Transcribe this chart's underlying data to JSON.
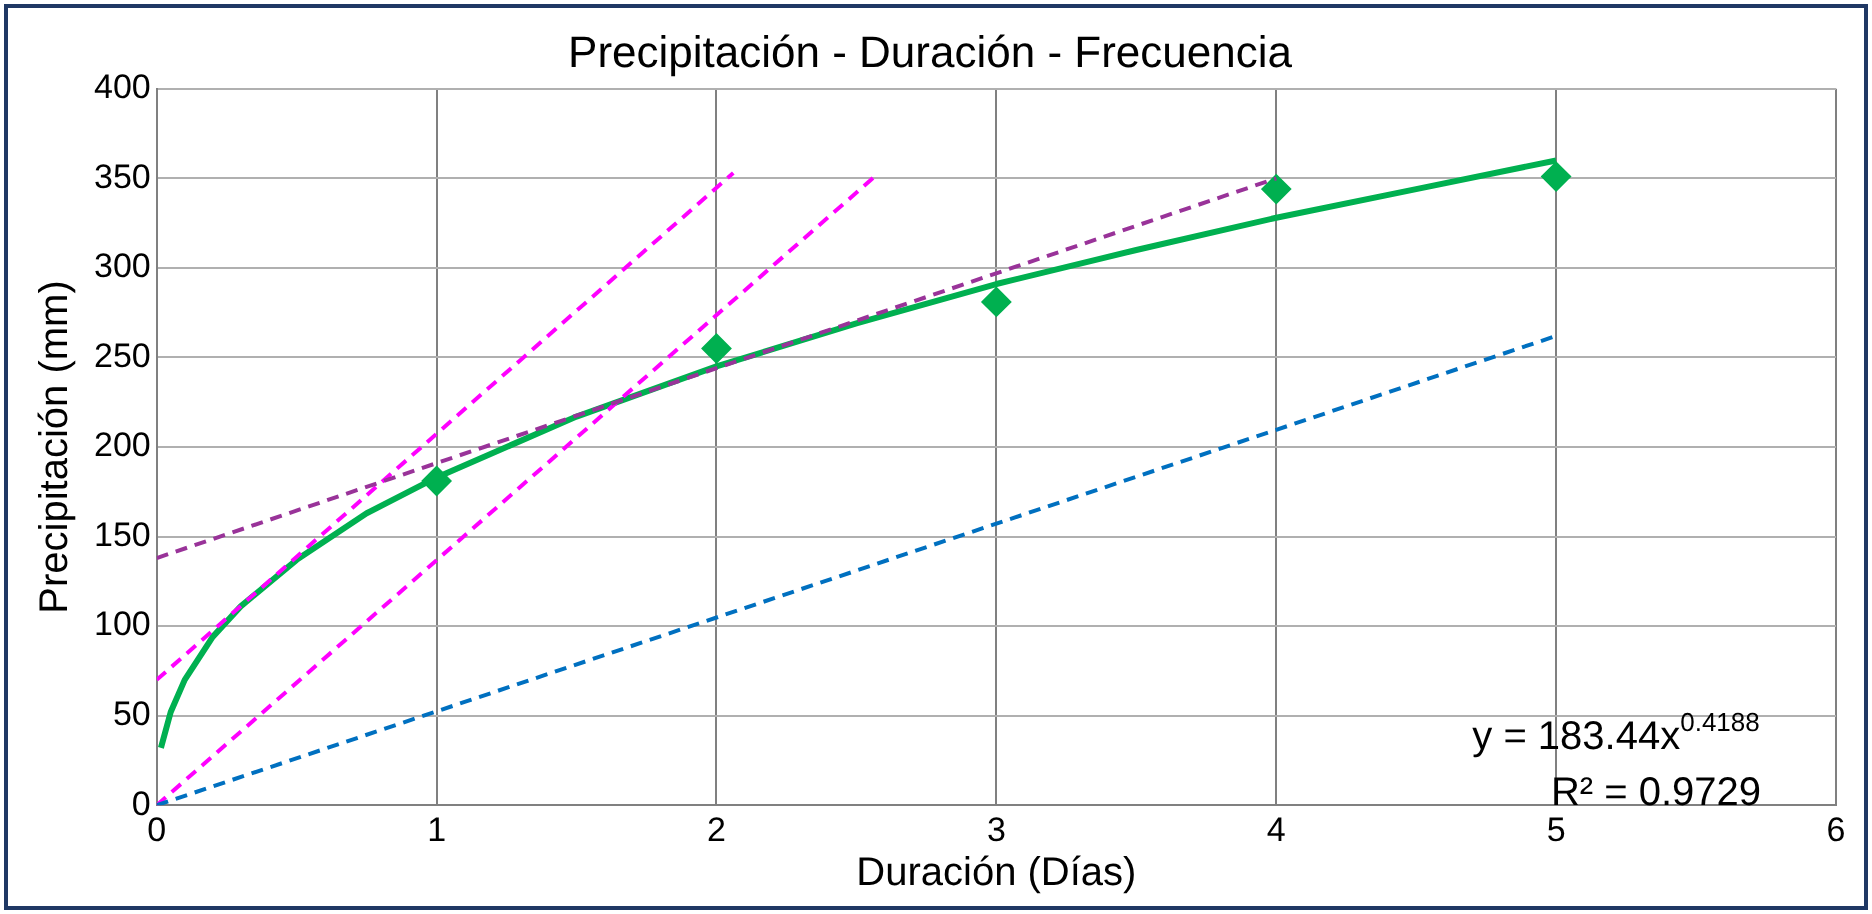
{
  "chart_data": {
    "type": "scatter",
    "title": "Precipitación - Duración - Frecuencia",
    "xlabel": "Duración (Días)",
    "ylabel": "Precipitación (mm)",
    "xlim": [
      0,
      6
    ],
    "xticks": [
      0,
      1,
      2,
      3,
      4,
      5,
      6
    ],
    "ylim": [
      0,
      400
    ],
    "yticks": [
      0,
      50,
      100,
      150,
      200,
      250,
      300,
      350,
      400
    ],
    "grid": true,
    "legend": false,
    "series": [
      {
        "type": "line",
        "color": "#0070c0",
        "line_style": "dashed",
        "marker": "none",
        "x": [
          0,
          5
        ],
        "values": [
          0,
          262
        ]
      },
      {
        "type": "line",
        "color": "#993399",
        "line_style": "dashed",
        "marker": "none",
        "x": [
          0,
          4
        ],
        "values": [
          138,
          350
        ]
      },
      {
        "type": "line",
        "color": "#ff00ff",
        "line_style": "dashed",
        "marker": "none",
        "x": [
          0,
          2.06
        ],
        "values": [
          70,
          353
        ]
      },
      {
        "type": "line",
        "color": "#ff00ff",
        "line_style": "dashed",
        "marker": "none",
        "x": [
          0,
          2.58
        ],
        "values": [
          0,
          353
        ]
      },
      {
        "type": "line",
        "color": "#00b050",
        "line_style": "solid",
        "marker": "none",
        "x": [
          0.015,
          0.05,
          0.1,
          0.2,
          0.3,
          0.5,
          0.75,
          1,
          1.5,
          2,
          2.5,
          3,
          3.5,
          4,
          4.5,
          5
        ],
        "values": [
          32,
          52,
          70,
          94,
          111,
          137,
          163,
          183,
          217,
          245,
          269,
          291,
          310,
          328,
          344,
          360
        ]
      },
      {
        "type": "scatter",
        "color": "#00b050",
        "marker": "diamond",
        "x": [
          1,
          2,
          3,
          4,
          5
        ],
        "values": [
          181,
          255,
          281,
          344,
          351
        ]
      }
    ],
    "annotations": [
      "y = 183.44x$^{0.4188}$",
      "R² = 0.9729"
    ]
  }
}
